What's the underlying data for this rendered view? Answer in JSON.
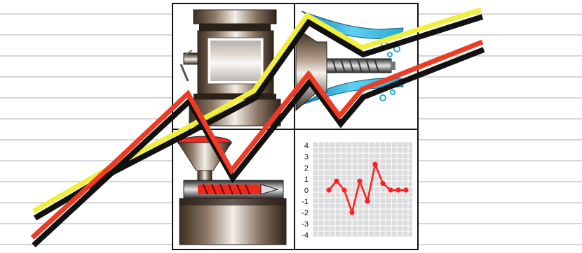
{
  "colors": {
    "background": "#ffffff",
    "stripe": "#c8c8c8",
    "panel_border": "#111111",
    "yellow_line": "#f2ee3c",
    "red_line": "#ef3b24",
    "line_shadow": "#111111",
    "metal_dark": "#3c2e22",
    "metal_light": "#f4efe8",
    "water": "#29a9d6",
    "grid_bg": "#dcdcdc",
    "mini_line": "#ff1d1d"
  },
  "panels": {
    "top_left": {
      "icon": "press-machine-icon"
    },
    "top_right": {
      "icon": "injection-screw-water-icon"
    },
    "bottom_left": {
      "icon": "hopper-extruder-icon"
    },
    "bottom_right": {
      "icon": "mini-chart-icon"
    }
  },
  "mini_chart": {
    "y_ticks": [
      "4",
      "3",
      "2",
      "1",
      "0",
      "-1",
      "-2",
      "-3",
      "-4"
    ],
    "values": [
      0,
      0.8,
      0,
      -2,
      0.8,
      -1,
      2.3,
      0.6,
      0,
      0,
      0
    ],
    "ylim": [
      -4,
      4
    ]
  }
}
